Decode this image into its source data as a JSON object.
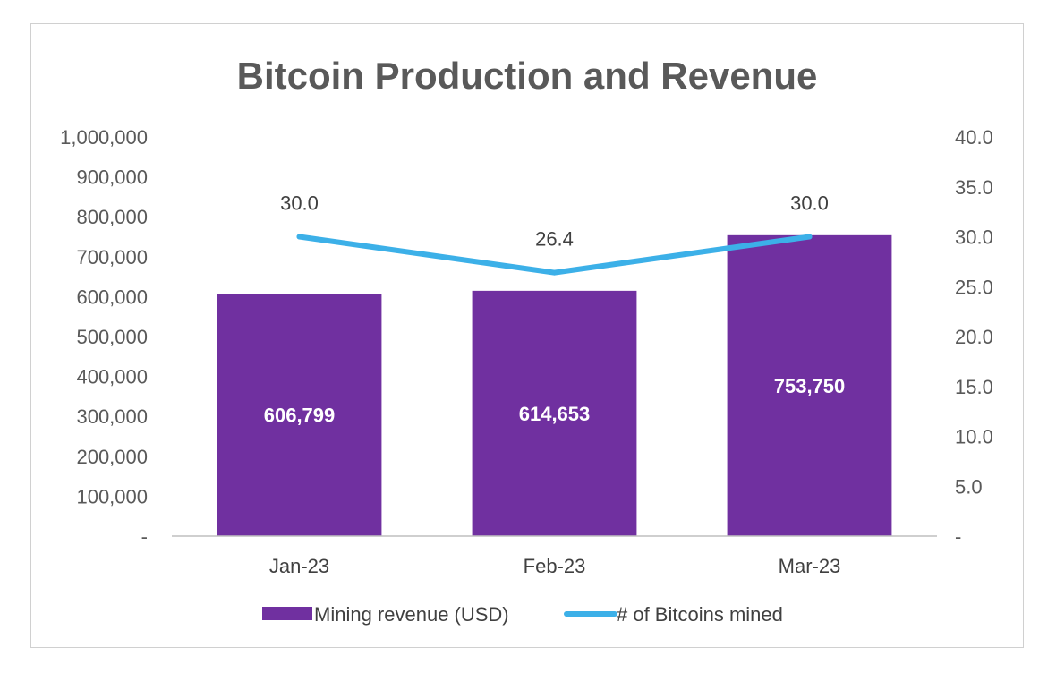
{
  "chart_data": {
    "type": "bar",
    "title": "Bitcoin Production and Revenue",
    "categories": [
      "Jan-23",
      "Feb-23",
      "Mar-23"
    ],
    "series": [
      {
        "name": "Mining revenue (USD)",
        "kind": "bar",
        "axis": "left",
        "color": "#7030A0",
        "values": [
          606799,
          614653,
          753750
        ],
        "labels": [
          "606,799",
          "614,653",
          "753,750"
        ]
      },
      {
        "name": "# of Bitcoins mined",
        "kind": "line",
        "axis": "right",
        "color": "#3CB0E8",
        "values": [
          30.0,
          26.4,
          30.0
        ],
        "labels": [
          "30.0",
          "26.4",
          "30.0"
        ]
      }
    ],
    "y_left": {
      "min": 0,
      "max": 1000000,
      "step": 100000,
      "tick_labels": [
        "-",
        "100,000",
        "200,000",
        "300,000",
        "400,000",
        "500,000",
        "600,000",
        "700,000",
        "800,000",
        "900,000",
        "1,000,000"
      ]
    },
    "y_right": {
      "min": 0,
      "max": 40,
      "step": 5,
      "tick_labels": [
        "-",
        "5.0",
        "10.0",
        "15.0",
        "20.0",
        "25.0",
        "30.0",
        "35.0",
        "40.0"
      ]
    },
    "grid": false,
    "legend_position": "bottom"
  }
}
